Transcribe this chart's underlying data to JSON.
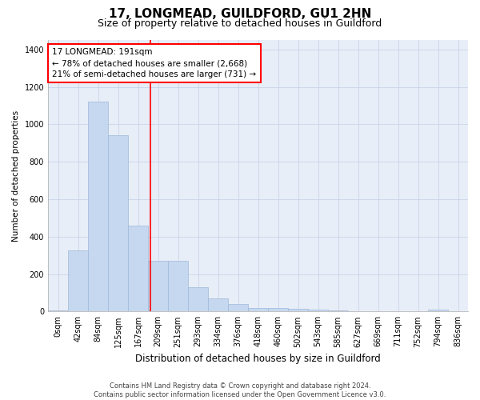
{
  "title1": "17, LONGMEAD, GUILDFORD, GU1 2HN",
  "title2": "Size of property relative to detached houses in Guildford",
  "xlabel": "Distribution of detached houses by size in Guildford",
  "ylabel": "Number of detached properties",
  "footnote": "Contains HM Land Registry data © Crown copyright and database right 2024.\nContains public sector information licensed under the Open Government Licence v3.0.",
  "bar_labels": [
    "0sqm",
    "42sqm",
    "84sqm",
    "125sqm",
    "167sqm",
    "209sqm",
    "251sqm",
    "293sqm",
    "334sqm",
    "376sqm",
    "418sqm",
    "460sqm",
    "502sqm",
    "543sqm",
    "585sqm",
    "627sqm",
    "669sqm",
    "711sqm",
    "752sqm",
    "794sqm",
    "836sqm"
  ],
  "bar_values": [
    5,
    325,
    1120,
    940,
    460,
    270,
    270,
    130,
    70,
    38,
    20,
    20,
    15,
    10,
    5,
    3,
    2,
    0,
    0,
    8,
    3
  ],
  "bar_color": "#c5d8f0",
  "bar_edge_color": "#a0b8d8",
  "vline_x": 4.6,
  "vline_color": "red",
  "annotation_text": "17 LONGMEAD: 191sqm\n← 78% of detached houses are smaller (2,668)\n21% of semi-detached houses are larger (731) →",
  "annotation_box_color": "white",
  "annotation_box_edge_color": "red",
  "ylim": [
    0,
    1450
  ],
  "yticks": [
    0,
    200,
    400,
    600,
    800,
    1000,
    1200,
    1400
  ],
  "grid_color": "#c8d4e8",
  "background_color": "#e8eef8",
  "title1_fontsize": 11,
  "title2_fontsize": 9,
  "xlabel_fontsize": 8.5,
  "ylabel_fontsize": 7.5,
  "tick_fontsize": 7,
  "annotation_fontsize": 7.5,
  "footnote_fontsize": 6
}
